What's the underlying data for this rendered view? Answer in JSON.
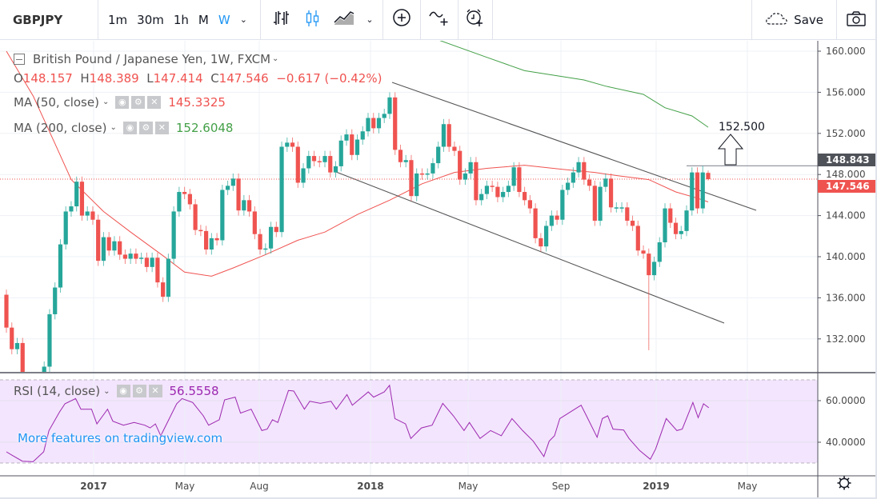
{
  "toolbar": {
    "symbol": "GBPJPY",
    "intervals": [
      "1m",
      "30m",
      "1h",
      "M",
      "W"
    ],
    "active_interval": "W",
    "save_label": "Save",
    "icons": [
      "chevron-down-icon",
      "bar-chart-icon",
      "candlestick-icon",
      "area-chart-icon",
      "chevron-down-icon",
      "add-circle-icon",
      "indicator-add-icon",
      "alarm-add-icon",
      "cloud-icon",
      "camera-icon"
    ]
  },
  "legend": {
    "title": "British Pound / Japanese Yen, 1W, FXCM",
    "ohlc": {
      "o_label": "O",
      "o": "148.157",
      "h_label": "H",
      "h": "148.389",
      "l_label": "L",
      "l": "147.414",
      "c_label": "C",
      "c": "147.546",
      "change": "−0.617 (−0.42%)"
    },
    "ma50": {
      "label": "MA (50, close)",
      "value": "145.3325",
      "color": "#ef5350"
    },
    "ma200": {
      "label": "MA (200, close)",
      "value": "152.6048",
      "color": "#43a047"
    },
    "rsi": {
      "label": "RSI (14, close)",
      "value": "56.5558",
      "color": "#9c27b0"
    }
  },
  "promo": "More features on tradingview.com",
  "colors": {
    "up": "#26a69a",
    "down": "#ef5350",
    "rsi_fill": "#f3e5fd",
    "accent": "#2196f3"
  },
  "chart_data": {
    "type": "candlestick",
    "symbol": "GBPJPY",
    "interval": "1W",
    "ylim": [
      128,
      161.5
    ],
    "y_ticks": [
      "160.000",
      "156.000",
      "152.000",
      "148.000",
      "144.000",
      "140.000",
      "136.000",
      "132.000"
    ],
    "x_ticks": [
      {
        "label": "2017",
        "bold": true
      },
      {
        "label": "May",
        "bold": false
      },
      {
        "label": "Aug",
        "bold": false
      },
      {
        "label": "2018",
        "bold": true
      },
      {
        "label": "May",
        "bold": false
      },
      {
        "label": "Sep",
        "bold": false
      },
      {
        "label": "2019",
        "bold": true
      },
      {
        "label": "May",
        "bold": false
      }
    ],
    "first_open": 136.3,
    "close": [
      133.1,
      131.0,
      131.6,
      127.8,
      126.8,
      127.0,
      127.5,
      129.3,
      134.4,
      137.0,
      141.2,
      144.4,
      144.9,
      147.3,
      144.0,
      144.4,
      143.6,
      139.6,
      141.9,
      140.6,
      141.5,
      140.2,
      139.8,
      140.3,
      139.8,
      139.9,
      139.0,
      139.9,
      137.5,
      136.1,
      139.8,
      144.4,
      146.3,
      146.1,
      145.1,
      142.6,
      142.5,
      140.7,
      141.8,
      141.6,
      146.5,
      146.9,
      147.6,
      144.5,
      145.5,
      144.4,
      142.2,
      140.7,
      140.8,
      142.9,
      142.4,
      150.7,
      151.1,
      150.7,
      147.2,
      148.6,
      149.8,
      149.3,
      149.2,
      149.8,
      148.2,
      148.8,
      151.3,
      151.9,
      149.9,
      151.4,
      152.2,
      153.5,
      152.5,
      153.5,
      153.9,
      155.5,
      150.4,
      149.2,
      149.4,
      145.9,
      148.1,
      148.0,
      148.1,
      149.1,
      150.7,
      152.9,
      150.7,
      150.3,
      147.5,
      148.1,
      149.2,
      145.5,
      146.1,
      146.9,
      146.8,
      145.8,
      146.3,
      146.9,
      148.7,
      146.3,
      145.5,
      144.7,
      141.8,
      141.0,
      143.0,
      144.0,
      143.6,
      146.5,
      147.2,
      148.2,
      149.2,
      147.5,
      146.9,
      143.5,
      146.8,
      147.6,
      144.8,
      144.8,
      144.8,
      143.5,
      143.0,
      140.6,
      140.3,
      138.2,
      139.5,
      141.4,
      144.7,
      143.3,
      142.2,
      142.5,
      144.5,
      148.2,
      144.7,
      148.2,
      147.546
    ],
    "last_candle": {
      "open": 148.157,
      "high": 148.389,
      "low": 147.414,
      "close": 147.546
    },
    "notable_wicks": [
      {
        "week": 119,
        "low": 130.9
      },
      {
        "week": 129,
        "high": 148.843
      }
    ],
    "ma50": [
      [
        0,
        160
      ],
      [
        5,
        155.6
      ],
      [
        9,
        151
      ],
      [
        12,
        147.5
      ],
      [
        18,
        144.4
      ],
      [
        23,
        142.4
      ],
      [
        29,
        140.1
      ],
      [
        33,
        138.5
      ],
      [
        38,
        138.1
      ],
      [
        42,
        138.9
      ],
      [
        48,
        140.2
      ],
      [
        54,
        141.6
      ],
      [
        59,
        142.4
      ],
      [
        65,
        144.1
      ],
      [
        71,
        145.5
      ],
      [
        77,
        147.1
      ],
      [
        83,
        148.2
      ],
      [
        89,
        148.6
      ],
      [
        96,
        148.9
      ],
      [
        103,
        148.5
      ],
      [
        109,
        148.2
      ],
      [
        113,
        147.9
      ],
      [
        119,
        147.5
      ],
      [
        124,
        146.3
      ],
      [
        128,
        145.7
      ],
      [
        130,
        145.33
      ]
    ],
    "ma200": [
      [
        80,
        161.1
      ],
      [
        89,
        159.4
      ],
      [
        96,
        158.1
      ],
      [
        107,
        157.2
      ],
      [
        111,
        156.6
      ],
      [
        118,
        155.8
      ],
      [
        122,
        154.5
      ],
      [
        127,
        153.7
      ],
      [
        130,
        152.6
      ]
    ],
    "price_labels": [
      {
        "value": "148.843",
        "kind": "horizontal-line"
      },
      {
        "value": "147.546",
        "kind": "last-price"
      }
    ],
    "annotation": {
      "text": "152.500",
      "icon": "arrow-up-icon"
    },
    "rsi": {
      "ylim": [
        25,
        75
      ],
      "bands": [
        30,
        70
      ],
      "y_ticks": [
        "60.0000",
        "40.0000"
      ],
      "points": [
        [
          0,
          35.4
        ],
        [
          1,
          33.8
        ],
        [
          3,
          30.9
        ],
        [
          5,
          30.6
        ],
        [
          7,
          35.4
        ],
        [
          8,
          45.6
        ],
        [
          10,
          54.6
        ],
        [
          11,
          58.5
        ],
        [
          13,
          61
        ],
        [
          14,
          55.9
        ],
        [
          16,
          55.9
        ],
        [
          17,
          48.8
        ],
        [
          19,
          55.9
        ],
        [
          20,
          50.1
        ],
        [
          22,
          48.2
        ],
        [
          24,
          49.5
        ],
        [
          26,
          48.2
        ],
        [
          27,
          46.9
        ],
        [
          28,
          48.8
        ],
        [
          29,
          43.1
        ],
        [
          32,
          58.5
        ],
        [
          33,
          61
        ],
        [
          35,
          59.1
        ],
        [
          37,
          52.7
        ],
        [
          38,
          48.2
        ],
        [
          40,
          50.8
        ],
        [
          41,
          60.4
        ],
        [
          43,
          61.7
        ],
        [
          44,
          54
        ],
        [
          46,
          55.9
        ],
        [
          48,
          45.6
        ],
        [
          49,
          46.3
        ],
        [
          50,
          50.8
        ],
        [
          51,
          49.5
        ],
        [
          53,
          64.9
        ],
        [
          54,
          64.6
        ],
        [
          56,
          55.9
        ],
        [
          57,
          59.7
        ],
        [
          59,
          58.7
        ],
        [
          61,
          59.7
        ],
        [
          62,
          55.9
        ],
        [
          64,
          62.9
        ],
        [
          65,
          57.8
        ],
        [
          68,
          64.2
        ],
        [
          69,
          61.7
        ],
        [
          71,
          64.2
        ],
        [
          72,
          67.4
        ],
        [
          73,
          51.4
        ],
        [
          75,
          48.8
        ],
        [
          76,
          41.8
        ],
        [
          78,
          46.9
        ],
        [
          80,
          48.2
        ],
        [
          82,
          58.7
        ],
        [
          84,
          52.7
        ],
        [
          86,
          45.6
        ],
        [
          87,
          49.5
        ],
        [
          89,
          41.8
        ],
        [
          91,
          45.6
        ],
        [
          93,
          43.1
        ],
        [
          95,
          51.4
        ],
        [
          97,
          45.6
        ],
        [
          99,
          40.5
        ],
        [
          101,
          33.1
        ],
        [
          102,
          40.5
        ],
        [
          103,
          43.1
        ],
        [
          104,
          51.4
        ],
        [
          108,
          57.8
        ],
        [
          109,
          52.7
        ],
        [
          111,
          42.4
        ],
        [
          112,
          51.4
        ],
        [
          113,
          52.7
        ],
        [
          114,
          46.3
        ],
        [
          116,
          45.9
        ],
        [
          117,
          41.8
        ],
        [
          119,
          36
        ],
        [
          121,
          31.8
        ],
        [
          122,
          36.7
        ],
        [
          124,
          51.4
        ],
        [
          126,
          45.6
        ],
        [
          127,
          46.3
        ],
        [
          129,
          59.1
        ],
        [
          130,
          51.8
        ],
        [
          131,
          58.5
        ],
        [
          132,
          56.56
        ]
      ]
    }
  }
}
